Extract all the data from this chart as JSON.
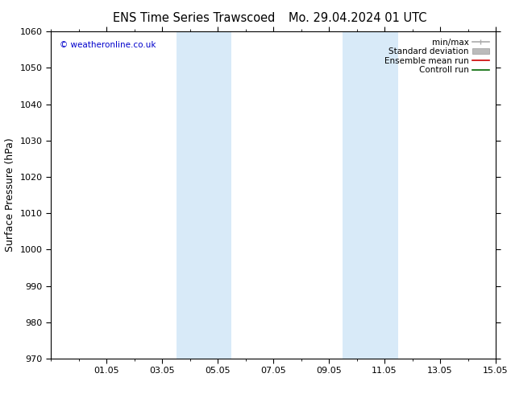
{
  "title_left": "ENS Time Series Trawscoed",
  "title_right": "Mo. 29.04.2024 01 UTC",
  "ylabel": "Surface Pressure (hPa)",
  "ylim": [
    970,
    1060
  ],
  "yticks": [
    970,
    980,
    990,
    1000,
    1010,
    1020,
    1030,
    1040,
    1050,
    1060
  ],
  "xlim": [
    0,
    16
  ],
  "xtick_labels": [
    "01.05",
    "03.05",
    "05.05",
    "07.05",
    "09.05",
    "11.05",
    "13.05",
    "15.05"
  ],
  "xtick_positions": [
    2,
    4,
    6,
    8,
    10,
    12,
    14,
    16
  ],
  "shaded_bands": [
    {
      "x_start": 4.5,
      "x_end": 6.5
    },
    {
      "x_start": 10.5,
      "x_end": 12.5
    }
  ],
  "shaded_color": "#d8eaf8",
  "watermark": "© weatheronline.co.uk",
  "watermark_color": "#0000cc",
  "legend_items": [
    {
      "label": "min/max",
      "color": "#aaaaaa",
      "lw": 1.2
    },
    {
      "label": "Standard deviation",
      "color": "#bbbbbb",
      "lw": 8
    },
    {
      "label": "Ensemble mean run",
      "color": "#cc0000",
      "lw": 1.2
    },
    {
      "label": "Controll run",
      "color": "#006600",
      "lw": 1.2
    }
  ],
  "background_color": "#ffffff",
  "title_fontsize": 10.5,
  "tick_label_fontsize": 8,
  "ylabel_fontsize": 9
}
